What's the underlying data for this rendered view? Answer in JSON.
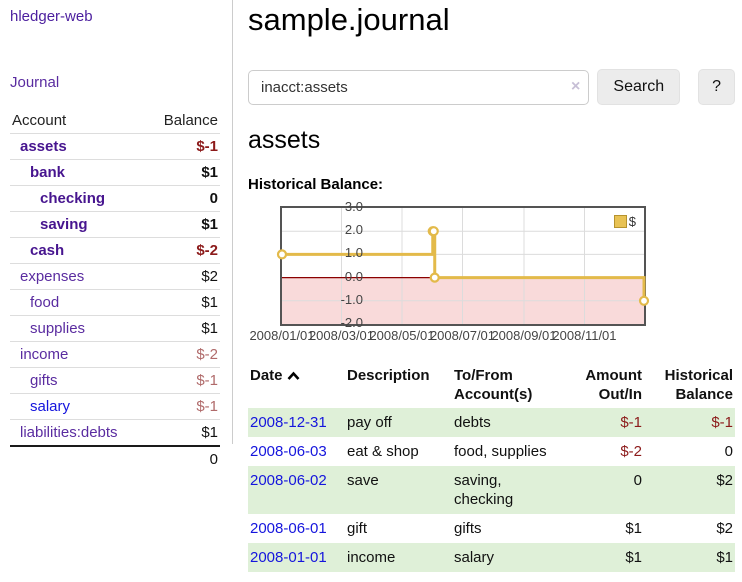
{
  "colors": {
    "accent_purple": "#5a2ca0",
    "bold_purple": "#47158f",
    "link_blue": "#1515dd",
    "negative_red": "#8c1a1a",
    "negative_muted": "#b06a6a",
    "row_green": "#dff0d8",
    "chart_line_gold": "#e3ba4a",
    "chart_zero_red": "#8b0000",
    "chart_below_zero_pink": "#f9dada"
  },
  "sidebar": {
    "brand": "hledger-web",
    "journal_link": "Journal",
    "accounts": {
      "col_account": "Account",
      "col_balance": "Balance",
      "rows": [
        {
          "name": "assets",
          "balance": "$-1"
        },
        {
          "name": "bank",
          "balance": "$1"
        },
        {
          "name": "checking",
          "balance": "0"
        },
        {
          "name": "saving",
          "balance": "$1"
        },
        {
          "name": "cash",
          "balance": "$-2"
        },
        {
          "name": "expenses",
          "balance": "$2"
        },
        {
          "name": "food",
          "balance": "$1"
        },
        {
          "name": "supplies",
          "balance": "$1"
        },
        {
          "name": "income",
          "balance": "$-2"
        },
        {
          "name": "gifts",
          "balance": "$-1"
        },
        {
          "name": "salary",
          "balance": "$-1"
        },
        {
          "name": "liabilities:debts",
          "balance": "$1"
        }
      ],
      "total": "0"
    }
  },
  "header": {
    "title": "sample.journal"
  },
  "search": {
    "value": "inacct:assets",
    "clear_icon": "×",
    "search_label": "Search",
    "help_label": "?"
  },
  "account_page": {
    "heading": "assets",
    "chart_title": "Historical Balance:"
  },
  "chart_data": {
    "type": "line",
    "legend": "$",
    "x_range": [
      "2008-01-01",
      "2008-12-31"
    ],
    "ylim": [
      -2.0,
      3.0
    ],
    "y_tick_values": [
      3,
      2,
      1,
      0,
      -1,
      -2
    ],
    "y_tick_labels": [
      "3.0",
      "2.0",
      "1.0",
      "0.0",
      "-1.0",
      "-2.0"
    ],
    "x_tick_dates": [
      "2008-01-01",
      "2008-03-01",
      "2008-05-01",
      "2008-07-01",
      "2008-09-01",
      "2008-11-01"
    ],
    "x_tick_labels": [
      "2008/01/01",
      "2008/03/01",
      "2008/05/01",
      "2008/07/01",
      "2008/09/01",
      "2008/11/01"
    ],
    "points": [
      {
        "date": "2008-01-01",
        "value": 1
      },
      {
        "date": "2008-06-01",
        "value": 2
      },
      {
        "date": "2008-06-02",
        "value": 2
      },
      {
        "date": "2008-06-03",
        "value": 0
      },
      {
        "date": "2008-12-31",
        "value": -1
      }
    ]
  },
  "register": {
    "headers": {
      "date": "Date",
      "description": "Description",
      "tofrom": "To/From Account(s)",
      "amount": "Amount Out/In",
      "historical": "Historical Balance"
    },
    "rows": [
      {
        "date": "2008-12-31",
        "description": "pay off",
        "tofrom": "debts",
        "amount": "$-1",
        "historical": "$-1"
      },
      {
        "date": "2008-06-03",
        "description": "eat & shop",
        "tofrom": "food, supplies",
        "amount": "$-2",
        "historical": "0"
      },
      {
        "date": "2008-06-02",
        "description": "save",
        "tofrom": "saving, checking",
        "amount": "0",
        "historical": "$2"
      },
      {
        "date": "2008-06-01",
        "description": "gift",
        "tofrom": "gifts",
        "amount": "$1",
        "historical": "$2"
      },
      {
        "date": "2008-01-01",
        "description": "income",
        "tofrom": "salary",
        "amount": "$1",
        "historical": "$1"
      }
    ]
  }
}
